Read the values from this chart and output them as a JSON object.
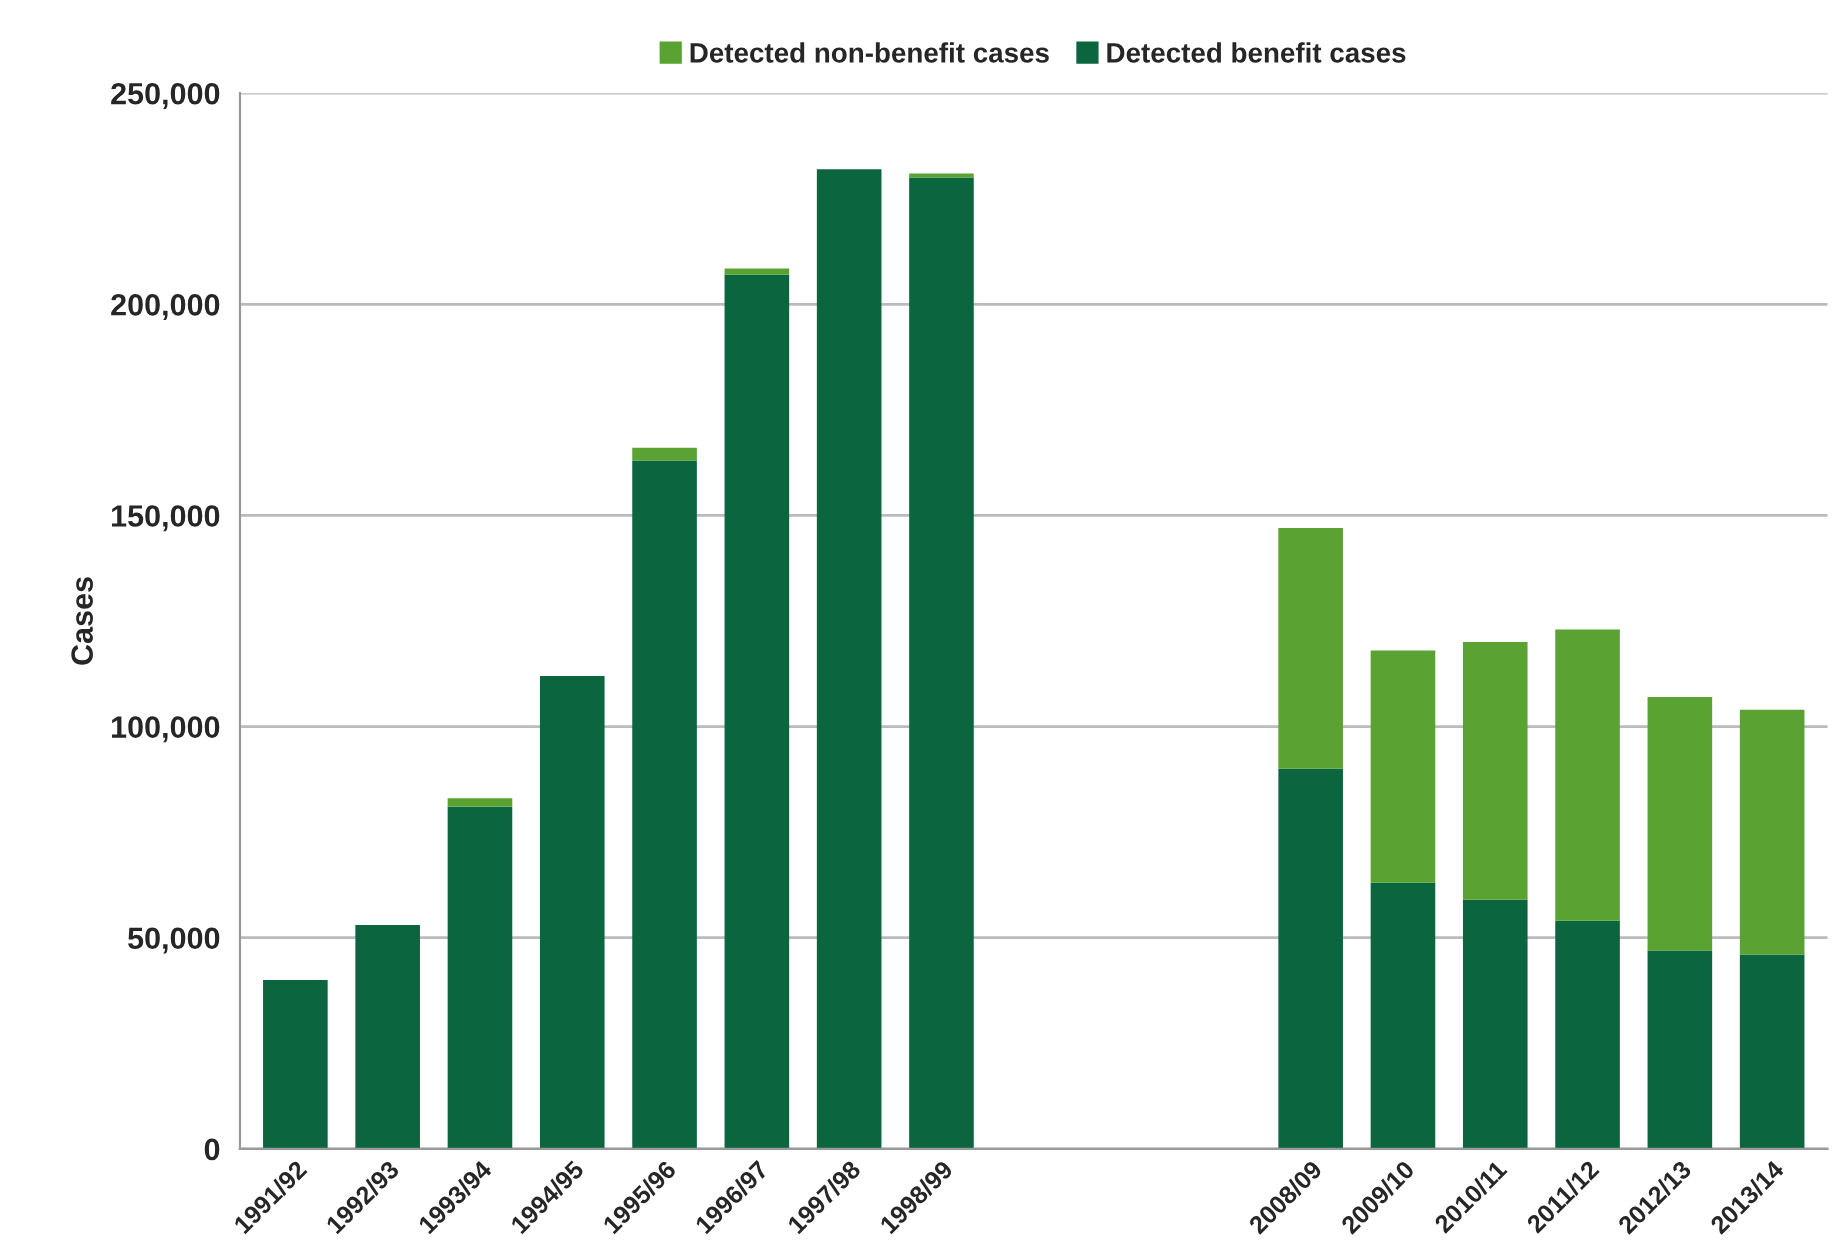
{
  "chart_data": {
    "type": "bar",
    "stacked": true,
    "ylabel": "Cases",
    "categories": [
      "1991/92",
      "1992/93",
      "1993/94",
      "1994/95",
      "1995/96",
      "1996/97",
      "1997/98",
      "1998/99",
      null,
      null,
      null,
      "2008/09",
      "2009/10",
      "2010/11",
      "2011/12",
      "2012/13",
      "2013/14"
    ],
    "series": [
      {
        "name": "Detected benefit cases",
        "color": "#0b6640",
        "values": [
          40000,
          53000,
          81000,
          112000,
          163000,
          207000,
          232000,
          230000,
          null,
          null,
          null,
          90000,
          63000,
          59000,
          54000,
          47000,
          46000
        ]
      },
      {
        "name": "Detected non-benefit cases",
        "color": "#5aa332",
        "values": [
          null,
          null,
          2000,
          null,
          3000,
          1500,
          null,
          1000,
          null,
          null,
          null,
          57000,
          55000,
          61000,
          69000,
          60000,
          58000
        ]
      }
    ],
    "ylim": [
      0,
      250000
    ],
    "yticks": [
      {
        "value": 0,
        "label": "0"
      },
      {
        "value": 50000,
        "label": "50,000"
      },
      {
        "value": 100000,
        "label": "100,000"
      },
      {
        "value": 150000,
        "label": "150,000"
      },
      {
        "value": 200000,
        "label": "200,000"
      },
      {
        "value": 250000,
        "label": "250,000"
      }
    ],
    "grid": "y",
    "legend": "top"
  }
}
